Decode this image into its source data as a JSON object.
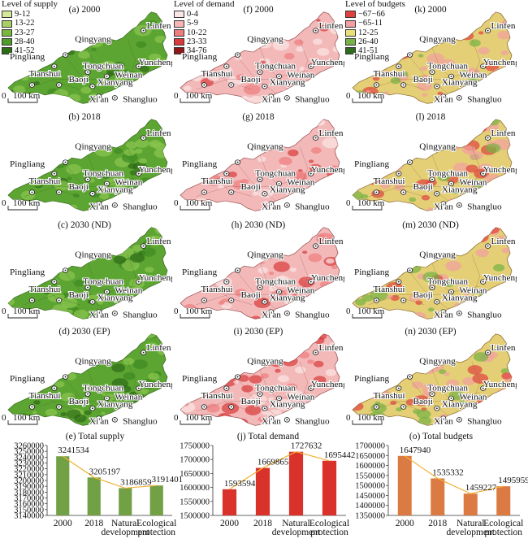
{
  "legends": [
    {
      "title": "Level of supply",
      "items": [
        {
          "label": "9-12",
          "color": "#d6e89a"
        },
        {
          "label": "13-22",
          "color": "#a9d067"
        },
        {
          "label": "23-27",
          "color": "#7ab83d"
        },
        {
          "label": "28-40",
          "color": "#4f9a28"
        },
        {
          "label": "41-52",
          "color": "#2d6b15"
        }
      ]
    },
    {
      "title": "Level of demand",
      "items": [
        {
          "label": "0-4",
          "color": "#fbe6e6"
        },
        {
          "label": "5-9",
          "color": "#f6b4b4"
        },
        {
          "label": "10-22",
          "color": "#ee7d7d"
        },
        {
          "label": "23-33",
          "color": "#d93b3b"
        },
        {
          "label": "34-76",
          "color": "#8e1818"
        }
      ]
    },
    {
      "title": "Level of budgets",
      "items": [
        {
          "label": "−67−66",
          "color": "#e0413f"
        },
        {
          "label": "−65-11",
          "color": "#f2a0a0"
        },
        {
          "label": "12-25",
          "color": "#e9e07a"
        },
        {
          "label": "26-40",
          "color": "#76b245"
        },
        {
          "label": "41-51",
          "color": "#2f6a1d"
        }
      ]
    }
  ],
  "panel_titles": [
    [
      "(a) 2000",
      "(f) 2000",
      "(k) 2000"
    ],
    [
      "(b) 2018",
      "(g) 2018",
      "(l) 2018"
    ],
    [
      "(c) 2030 (ND)",
      "(h) 2030 (ND)",
      "(m) 2030 (ND)"
    ],
    [
      "(d) 2030 (EP)",
      "(i) 2030 (EP)",
      "(n) 2030 (EP)"
    ]
  ],
  "map_colors": [
    {
      "base": "#5da532",
      "light": "#8cc64f",
      "dark": "#2d6b15",
      "accent": "#3f8a22",
      "stroke": "#3a6a20"
    },
    {
      "base": "#f3b9b9",
      "light": "#fbe6e6",
      "dark": "#d93b3b",
      "accent": "#ee7d7d",
      "stroke": "#9a5050"
    },
    {
      "base": "#e4cf76",
      "light": "#f2a0a0",
      "dark": "#e0413f",
      "accent": "#76b245",
      "stroke": "#8a6a30"
    }
  ],
  "cities": [
    "Linfen",
    "Qingyang",
    "Pingliang",
    "Tongchuan",
    "Yuncheng",
    "Tianshui",
    "Weinan",
    "Baoji",
    "Xianyang",
    "Xi'an",
    "Shangluo"
  ],
  "scalebar_label": "100 km",
  "scalebar_zero": "0",
  "chart_data": [
    {
      "type": "bar",
      "title": "(e) Total supply",
      "categories": [
        "2000",
        "2018",
        "Natural development",
        "Ecological protection"
      ],
      "values": [
        3241534,
        3205197,
        3186859,
        3191401
      ],
      "ylim": [
        3140000,
        3260000
      ],
      "yticks": [
        3140000,
        3150000,
        3160000,
        3170000,
        3180000,
        3190000,
        3200000,
        3210000,
        3220000,
        3230000,
        3240000,
        3250000,
        3260000
      ],
      "color": "#72a044",
      "line_color": "#f2b136"
    },
    {
      "type": "bar",
      "title": "(j) Total demand",
      "categories": [
        "2000",
        "2018",
        "Natural development",
        "Ecological protection"
      ],
      "values": [
        1593594,
        1669865,
        1727632,
        1695442
      ],
      "ylim": [
        1500000,
        1750000
      ],
      "yticks": [
        1500000,
        1550000,
        1600000,
        1650000,
        1700000,
        1750000
      ],
      "color": "#d8322b",
      "line_color": "#f2b136"
    },
    {
      "type": "bar",
      "title": "(o) Total budgets",
      "categories": [
        "2000",
        "2018",
        "Natural development",
        "Ecological protection"
      ],
      "values": [
        1647940,
        1535332,
        1459227,
        1495959
      ],
      "ylim": [
        1350000,
        1700000
      ],
      "yticks": [
        1350000,
        1400000,
        1450000,
        1500000,
        1550000,
        1600000,
        1650000,
        1700000
      ],
      "color": "#db7b43",
      "line_color": "#f2b136"
    }
  ]
}
